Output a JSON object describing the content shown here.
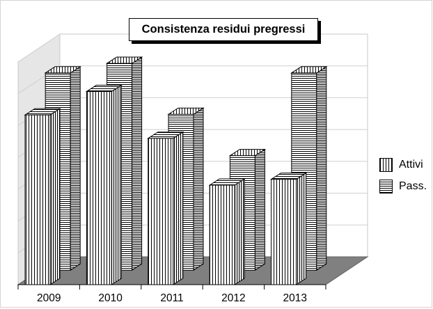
{
  "chart_data": {
    "type": "bar",
    "title": "Consistenza residui pregressi",
    "categories": [
      "2009",
      "2010",
      "2011",
      "2012",
      "2013"
    ],
    "series": [
      {
        "name": "Attivi",
        "values": [
          58,
          66,
          50,
          34,
          36
        ]
      },
      {
        "name": "Pass.",
        "values": [
          62,
          65,
          49,
          36,
          62
        ]
      }
    ],
    "ylim": [
      0,
      70
    ],
    "grid": true,
    "legend": "right",
    "three_d": true,
    "pattern": {
      "Attivi": "vertical-hatch",
      "Pass.": "horizontal-hatch"
    },
    "colors": {
      "hatch": "#000000",
      "floor": "#808080",
      "wall": "#e6e6e6"
    }
  }
}
